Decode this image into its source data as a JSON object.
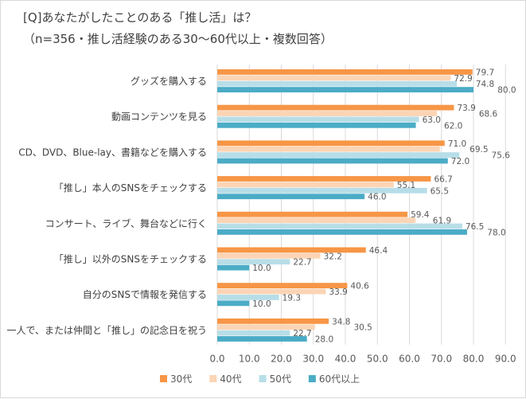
{
  "chart_data": {
    "type": "bar",
    "orientation": "horizontal",
    "title": "[Q]あなたがしたことのある「推し活」は？",
    "subtitle": "（n=356・推し活経験のある30〜60代以上・複数回答）",
    "categories": [
      "グッズを購入する",
      "動画コンテンツを見る",
      "CD、DVD、Blue-lay、書籍などを購入する",
      "「推し」本人のSNSをチェックする",
      "コンサート、ライブ、舞台などに行く",
      "「推し」以外のSNSをチェックする",
      "自分のSNSで情報を発信する",
      "一人で、または仲間と「推し」の記念日を祝う"
    ],
    "series": [
      {
        "name": "30代",
        "color": "#F79646",
        "values": [
          79.7,
          73.9,
          71.0,
          66.7,
          59.4,
          46.4,
          40.6,
          34.8
        ]
      },
      {
        "name": "40代",
        "color": "#FBD5B5",
        "values": [
          72.9,
          68.6,
          69.5,
          55.1,
          61.9,
          32.2,
          33.9,
          30.5
        ]
      },
      {
        "name": "50代",
        "color": "#B7DEE8",
        "values": [
          74.8,
          63.0,
          75.6,
          65.5,
          76.5,
          22.7,
          19.3,
          22.7
        ]
      },
      {
        "name": "60代以上",
        "color": "#4BACC6",
        "values": [
          80.0,
          62.0,
          72.0,
          46.0,
          78.0,
          10.0,
          10.0,
          28.0
        ]
      }
    ],
    "xlim": [
      0,
      90
    ],
    "xticks": [
      "0.0",
      "10.0",
      "20.0",
      "30.0",
      "40.0",
      "50.0",
      "60.0",
      "70.0",
      "80.0",
      "90.0"
    ],
    "grid": true,
    "legend": "bottom"
  }
}
